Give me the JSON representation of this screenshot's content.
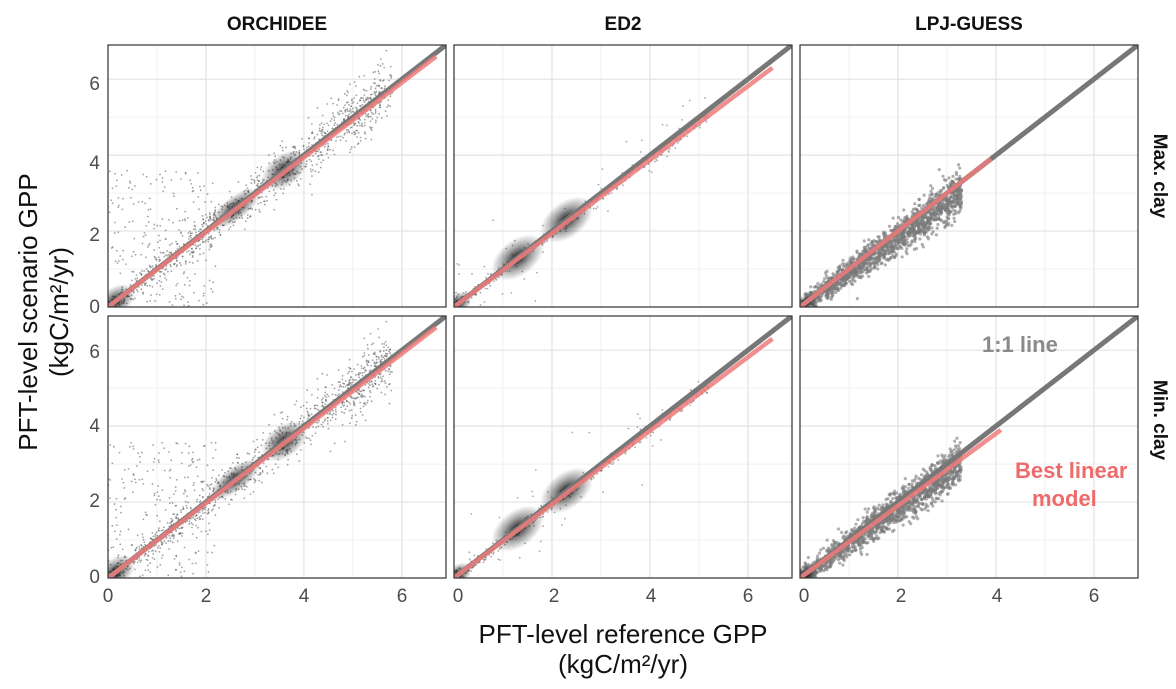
{
  "chart_data": {
    "type": "scatter",
    "columns": [
      "ORCHIDEE",
      "ED2",
      "LPJ-GUESS"
    ],
    "rows": [
      "Max. clay",
      "Min. clay"
    ],
    "xlabel_line1": "PFT-level reference GPP",
    "xlabel_line2": "(kgC/m²/yr)",
    "ylabel_line1": "PFT-level scenario GPP",
    "ylabel_line2": "(kgC/m²/yr)",
    "xlim": [
      0,
      6.9
    ],
    "ylim": [
      0,
      6.9
    ],
    "x_ticks": [
      "0",
      "2",
      "4",
      "6"
    ],
    "y_ticks": [
      "0",
      "2",
      "4",
      "6"
    ],
    "grid": true,
    "reference_line": {
      "label": "1:1 line",
      "slope": 1,
      "intercept": 0,
      "color": "#777777"
    },
    "fit_line": {
      "label": "Best linear model",
      "color": "#ee7b7b"
    },
    "annotation_1to1": "1:1 line",
    "annotation_best_1": "Best linear",
    "annotation_best_2": "model",
    "panels": [
      {
        "column": "ORCHIDEE",
        "row": "Max. clay",
        "fit": {
          "x": [
            0,
            6.7
          ],
          "y": [
            0,
            6.6
          ]
        },
        "x_max": 6.7
      },
      {
        "column": "ED2",
        "row": "Max. clay",
        "fit": {
          "x": [
            0,
            6.5
          ],
          "y": [
            0,
            6.3
          ]
        },
        "x_max": 6.5
      },
      {
        "column": "LPJ-GUESS",
        "row": "Max. clay",
        "fit": {
          "x": [
            0,
            3.9
          ],
          "y": [
            0,
            3.9
          ]
        },
        "x_max": 3.9
      },
      {
        "column": "ORCHIDEE",
        "row": "Min. clay",
        "fit": {
          "x": [
            0,
            6.7
          ],
          "y": [
            0,
            6.6
          ]
        },
        "x_max": 6.7
      },
      {
        "column": "ED2",
        "row": "Min. clay",
        "fit": {
          "x": [
            0,
            6.5
          ],
          "y": [
            0,
            6.3
          ]
        },
        "x_max": 6.5
      },
      {
        "column": "LPJ-GUESS",
        "row": "Min. clay",
        "fit": {
          "x": [
            0,
            4.1
          ],
          "y": [
            0,
            3.9
          ]
        },
        "x_max": 4.1
      }
    ]
  }
}
